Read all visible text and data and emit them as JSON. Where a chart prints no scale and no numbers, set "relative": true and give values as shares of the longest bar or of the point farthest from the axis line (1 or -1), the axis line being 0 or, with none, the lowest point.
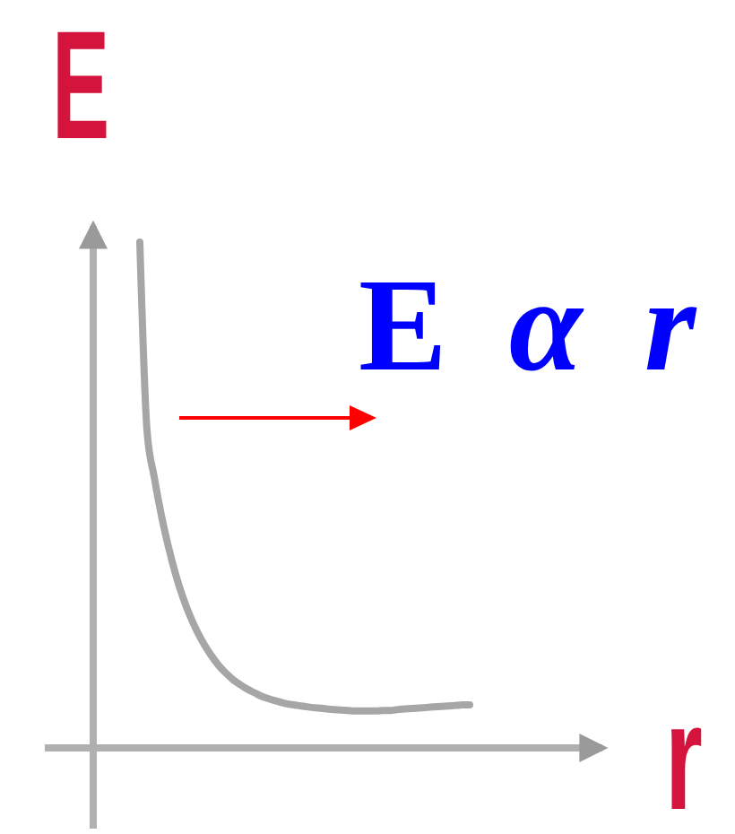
{
  "chart_data": {
    "type": "line",
    "relative": true,
    "xlabel": "r",
    "ylabel": "E",
    "annotations": [
      "E α r"
    ],
    "categories": [
      null,
      null,
      null,
      null,
      null,
      null,
      null,
      null,
      null,
      null,
      null,
      null,
      null,
      null,
      null,
      null,
      null,
      null,
      null,
      null,
      null,
      null,
      null,
      null,
      null,
      null,
      null,
      null,
      null,
      null,
      null,
      null,
      null,
      null,
      null,
      null,
      null,
      null,
      null,
      null,
      null,
      null,
      null,
      null,
      null,
      null,
      null
    ],
    "series": [
      {
        "color": "#a6a6a6",
        "values": [
          1,
          0.628,
          0.536,
          0.46,
          0.397,
          0.343,
          0.298,
          0.261,
          0.23,
          0.204,
          0.182,
          0.163,
          0.148,
          0.135,
          0.125,
          0.116,
          0.109,
          0.102,
          0.097,
          0.093,
          0.089,
          0.086,
          0.084,
          0.082,
          0.08,
          0.079,
          0.077,
          0.076,
          0.075,
          0.074,
          0.073,
          0.073,
          0.073,
          0.073,
          0.074,
          0.074,
          0.076,
          0.077,
          0.078,
          0.079,
          0.08,
          0.081,
          0.082,
          0.083,
          0.084,
          0.085,
          0.085
        ]
      }
    ]
  }
}
